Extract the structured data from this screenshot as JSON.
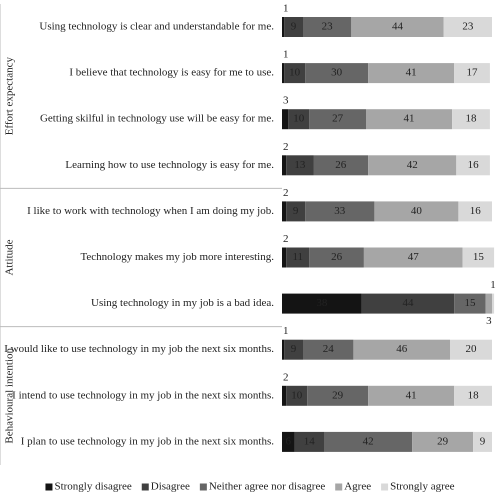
{
  "chart_data": {
    "type": "stacked-bar",
    "categories": [
      "Using technology is clear and understandable for me.",
      "I believe that technology is easy for me to use.",
      "Getting skilful in technology use will be easy for me.",
      "Learning how to use technology is easy for me.",
      "I like to work with technology when I am doing my job.",
      "Technology makes my job more interesting.",
      "Using technology in my job is a bad idea.",
      "I would like to use technology in my job the next six months.",
      "I intend to use technology in my job in the next six months.",
      "I plan to use technology in my job in the next six months."
    ],
    "groups": [
      {
        "name": "Effort expectancy",
        "rows": [
          0,
          3
        ]
      },
      {
        "name": "Attitude",
        "rows": [
          4,
          6
        ]
      },
      {
        "name": "Behavioural intention",
        "rows": [
          7,
          9
        ]
      }
    ],
    "series": [
      {
        "name": "Strongly disagree",
        "color": "#141414",
        "values": [
          1,
          1,
          3,
          2,
          2,
          2,
          38,
          1,
          2,
          6
        ]
      },
      {
        "name": "Disagree",
        "color": "#404040",
        "values": [
          9,
          10,
          10,
          13,
          9,
          11,
          44,
          9,
          10,
          14
        ]
      },
      {
        "name": "Neither agree nor disagree",
        "color": "#666666",
        "values": [
          23,
          30,
          27,
          26,
          33,
          26,
          15,
          24,
          29,
          42
        ]
      },
      {
        "name": "Agree",
        "color": "#a6a6a6",
        "values": [
          44,
          41,
          41,
          42,
          40,
          47,
          3,
          46,
          41,
          29
        ]
      },
      {
        "name": "Strongly agree",
        "color": "#d9d9d9",
        "values": [
          23,
          17,
          18,
          16,
          16,
          15,
          1,
          20,
          18,
          9
        ]
      }
    ]
  }
}
